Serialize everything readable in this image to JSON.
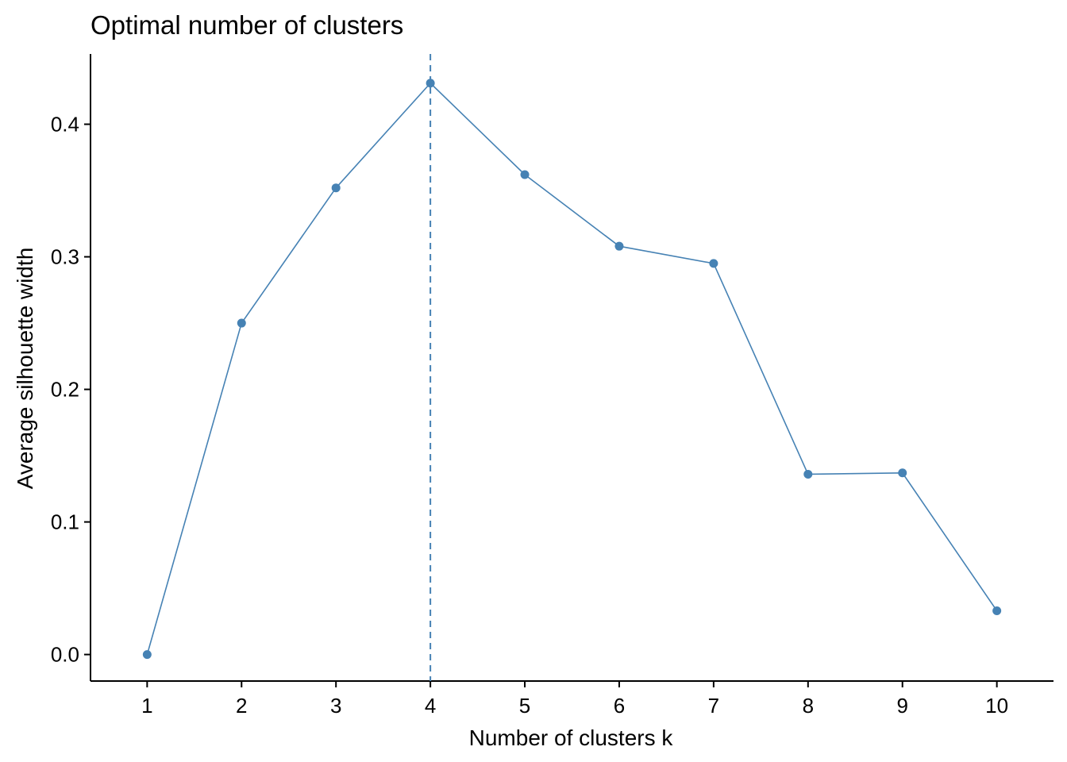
{
  "chart_data": {
    "type": "line",
    "title": "Optimal number of clusters",
    "xlabel": "Number of clusters k",
    "ylabel": "Average silhouette width",
    "x": [
      1,
      2,
      3,
      4,
      5,
      6,
      7,
      8,
      9,
      10
    ],
    "series": [
      {
        "values": [
          0.0,
          0.25,
          0.352,
          0.431,
          0.362,
          0.308,
          0.295,
          0.136,
          0.137,
          0.033
        ],
        "color": "#4682B4"
      }
    ],
    "x_tick_labels": [
      "1",
      "2",
      "3",
      "4",
      "5",
      "6",
      "7",
      "8",
      "9",
      "10"
    ],
    "y_ticks": [
      0.0,
      0.1,
      0.2,
      0.3,
      0.4
    ],
    "y_tick_labels": [
      "0.0",
      "0.1",
      "0.2",
      "0.3",
      "0.4"
    ],
    "xlim": [
      0.4,
      10.6
    ],
    "ylim": [
      -0.02,
      0.453
    ],
    "reference_line": {
      "x": 4,
      "style": "dashed",
      "color": "#4682B4"
    },
    "grid": false,
    "legend": "none",
    "axis_color": "#000000"
  }
}
